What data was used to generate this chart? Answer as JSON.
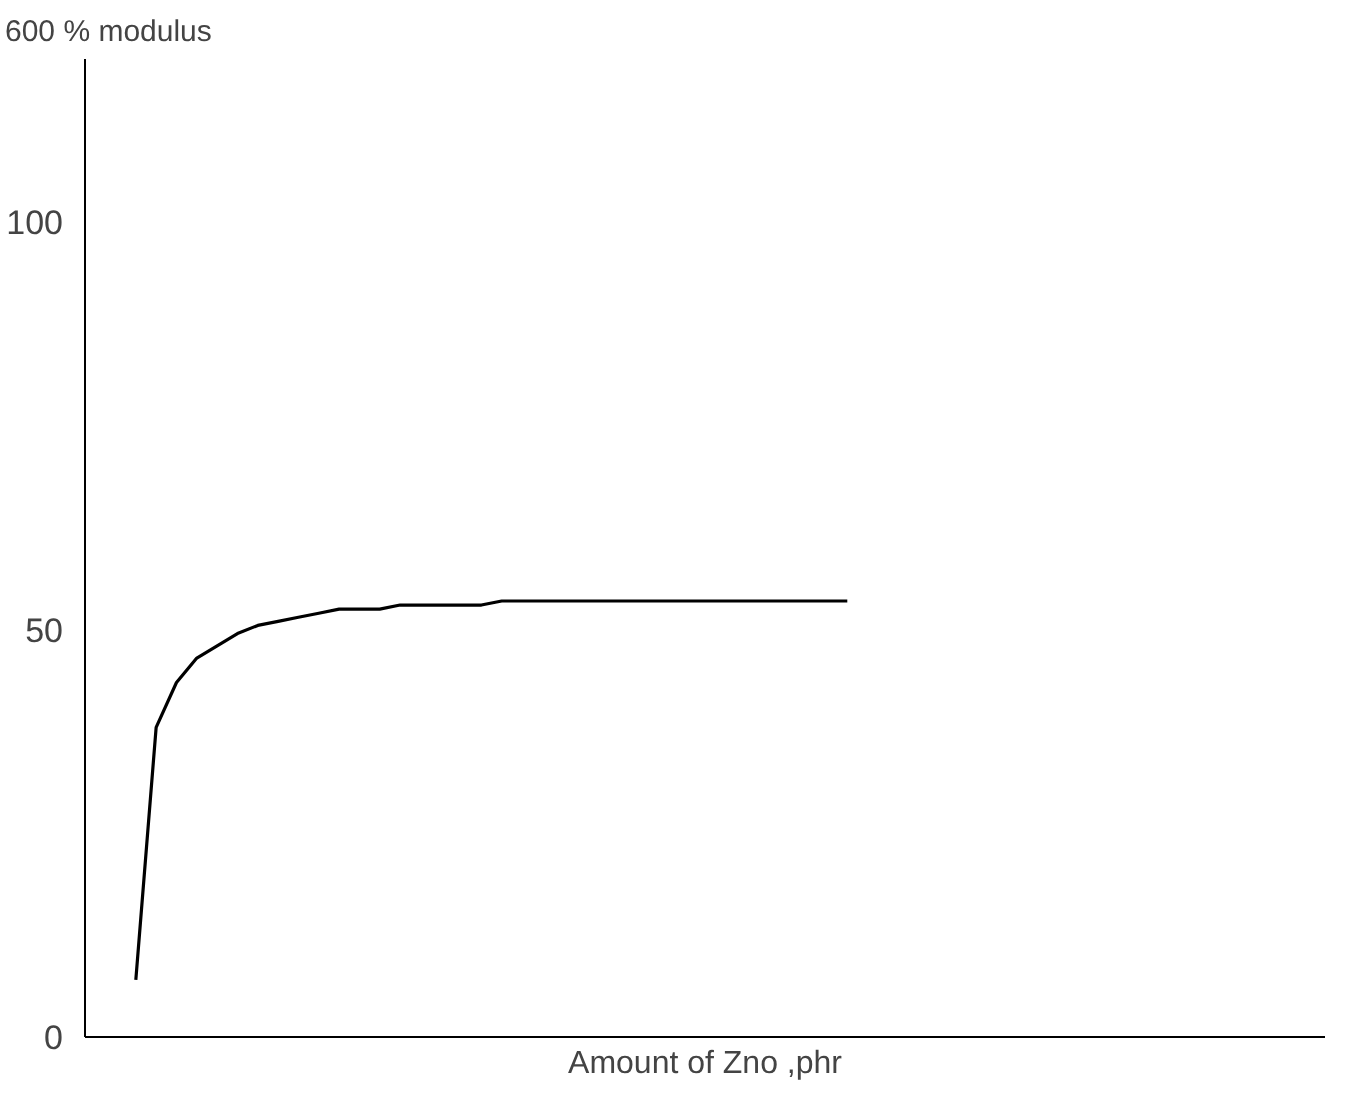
{
  "chart_data": {
    "type": "line",
    "ylabel": "600 % modulus",
    "xlabel": "Amount of Zno ,phr",
    "categories": [
      null,
      null,
      null,
      null,
      null,
      null,
      null,
      null,
      null,
      null,
      null,
      null,
      null,
      null,
      null,
      null,
      null,
      null,
      null,
      null,
      null,
      null,
      null,
      null,
      null,
      null,
      null,
      null,
      null,
      null,
      null,
      null,
      null,
      null,
      null,
      null,
      null,
      null,
      null,
      null,
      null,
      null,
      null,
      null,
      null,
      null,
      null,
      null,
      null,
      null,
      null,
      null,
      null,
      null,
      null,
      null,
      null,
      null,
      null,
      null,
      null
    ],
    "series": [
      {
        "color": "#000000",
        "values": [
          null,
          null,
          7,
          38,
          43.5,
          46.5,
          48,
          49.5,
          50.5,
          51,
          51.5,
          52,
          52.5,
          52.5,
          52.5,
          53,
          53,
          53,
          53,
          53,
          53.5,
          53.5,
          53.5,
          53.5,
          53.5,
          53.5,
          53.5,
          53.5,
          53.5,
          53.5,
          53.5,
          53.5,
          53.5,
          53.5,
          53.5,
          53.5,
          53.5,
          53.5,
          null,
          null,
          null,
          null,
          null,
          null,
          null,
          null,
          null,
          null,
          null,
          null,
          null,
          null,
          null,
          null,
          null,
          null,
          null,
          null,
          null,
          null,
          null
        ]
      }
    ],
    "ylim": [
      0,
      120
    ],
    "yticks": [
      0,
      50,
      100
    ],
    "grid": false
  }
}
